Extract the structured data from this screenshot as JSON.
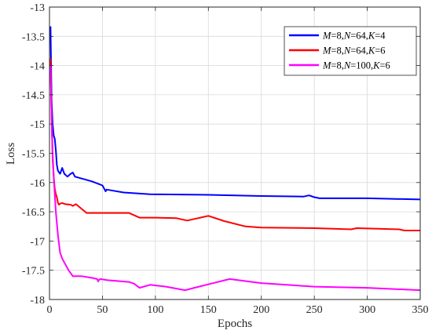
{
  "chart_data": {
    "type": "line",
    "title": "",
    "xlabel": "Epochs",
    "ylabel": "Loss",
    "xlim": [
      0,
      350
    ],
    "ylim": [
      -18,
      -13
    ],
    "grid": true,
    "legend_position": "top-right",
    "x_ticks": [
      0,
      50,
      100,
      150,
      200,
      250,
      300,
      350
    ],
    "y_ticks": [
      -13,
      -13.5,
      -14,
      -14.5,
      -15,
      -15.5,
      -16,
      -16.5,
      -17,
      -17.5,
      -18
    ],
    "x_tick_labels": [
      "0",
      "50",
      "100",
      "150",
      "200",
      "250",
      "300",
      "350"
    ],
    "y_tick_labels": [
      "-13",
      "-13.5",
      "-14",
      "-14.5",
      "-15",
      "-15.5",
      "-16",
      "-16.5",
      "-17",
      "-17.5",
      "-18"
    ],
    "series": [
      {
        "name": "M=8,N=64,K=4",
        "color": "#0000ff",
        "x": [
          1,
          2,
          3,
          4,
          5,
          6,
          7,
          8,
          10,
          12,
          14,
          17,
          20,
          22,
          24,
          30,
          40,
          50,
          53,
          54,
          60,
          70,
          95,
          150,
          200,
          240,
          245,
          250,
          255,
          300,
          350
        ],
        "y": [
          -13.33,
          -14.6,
          -15.0,
          -15.2,
          -15.25,
          -15.45,
          -15.7,
          -15.8,
          -15.85,
          -15.75,
          -15.85,
          -15.9,
          -15.85,
          -15.83,
          -15.9,
          -15.93,
          -15.98,
          -16.05,
          -16.15,
          -16.12,
          -16.14,
          -16.17,
          -16.2,
          -16.21,
          -16.23,
          -16.24,
          -16.22,
          -16.25,
          -16.27,
          -16.27,
          -16.29
        ]
      },
      {
        "name": "M=8,N=64,K=6",
        "color": "#ff0000",
        "x": [
          1,
          2,
          3,
          4,
          5,
          6,
          7,
          8,
          9,
          10,
          12,
          15,
          20,
          22,
          25,
          35,
          50,
          75,
          85,
          100,
          120,
          130,
          150,
          165,
          185,
          200,
          250,
          285,
          290,
          330,
          335,
          350
        ],
        "y": [
          -13.88,
          -14.9,
          -15.6,
          -15.9,
          -16.1,
          -16.2,
          -16.25,
          -16.35,
          -16.38,
          -16.36,
          -16.35,
          -16.37,
          -16.38,
          -16.4,
          -16.37,
          -16.52,
          -16.52,
          -16.52,
          -16.6,
          -16.6,
          -16.61,
          -16.65,
          -16.57,
          -16.66,
          -16.75,
          -16.77,
          -16.78,
          -16.8,
          -16.78,
          -16.8,
          -16.82,
          -16.82
        ]
      },
      {
        "name": "M=8,N=100,K=6",
        "color": "#ff00ff",
        "x": [
          1,
          2,
          3,
          4,
          5,
          6,
          7,
          8,
          10,
          12,
          15,
          18,
          22,
          30,
          40,
          45,
          46,
          47,
          48,
          55,
          75,
          80,
          85,
          95,
          110,
          128,
          148,
          170,
          200,
          250,
          300,
          350
        ],
        "y": [
          -14.0,
          -14.9,
          -15.5,
          -15.9,
          -16.2,
          -16.5,
          -16.7,
          -16.9,
          -17.2,
          -17.3,
          -17.4,
          -17.5,
          -17.6,
          -17.6,
          -17.63,
          -17.65,
          -17.69,
          -17.66,
          -17.65,
          -17.67,
          -17.7,
          -17.73,
          -17.8,
          -17.75,
          -17.78,
          -17.84,
          -17.75,
          -17.65,
          -17.72,
          -17.78,
          -17.8,
          -17.84
        ]
      }
    ]
  },
  "legend": {
    "entries": [
      {
        "parts": [
          [
            "M",
            true
          ],
          [
            "=8,",
            false
          ],
          [
            "N",
            true
          ],
          [
            "=64,",
            false
          ],
          [
            "K",
            true
          ],
          [
            "=4",
            false
          ]
        ]
      },
      {
        "parts": [
          [
            "M",
            true
          ],
          [
            "=8,",
            false
          ],
          [
            "N",
            true
          ],
          [
            "=64,",
            false
          ],
          [
            "K",
            true
          ],
          [
            "=6",
            false
          ]
        ]
      },
      {
        "parts": [
          [
            "M",
            true
          ],
          [
            "=8,",
            false
          ],
          [
            "N",
            true
          ],
          [
            "=100,",
            false
          ],
          [
            "K",
            true
          ],
          [
            "=6",
            false
          ]
        ]
      }
    ]
  }
}
